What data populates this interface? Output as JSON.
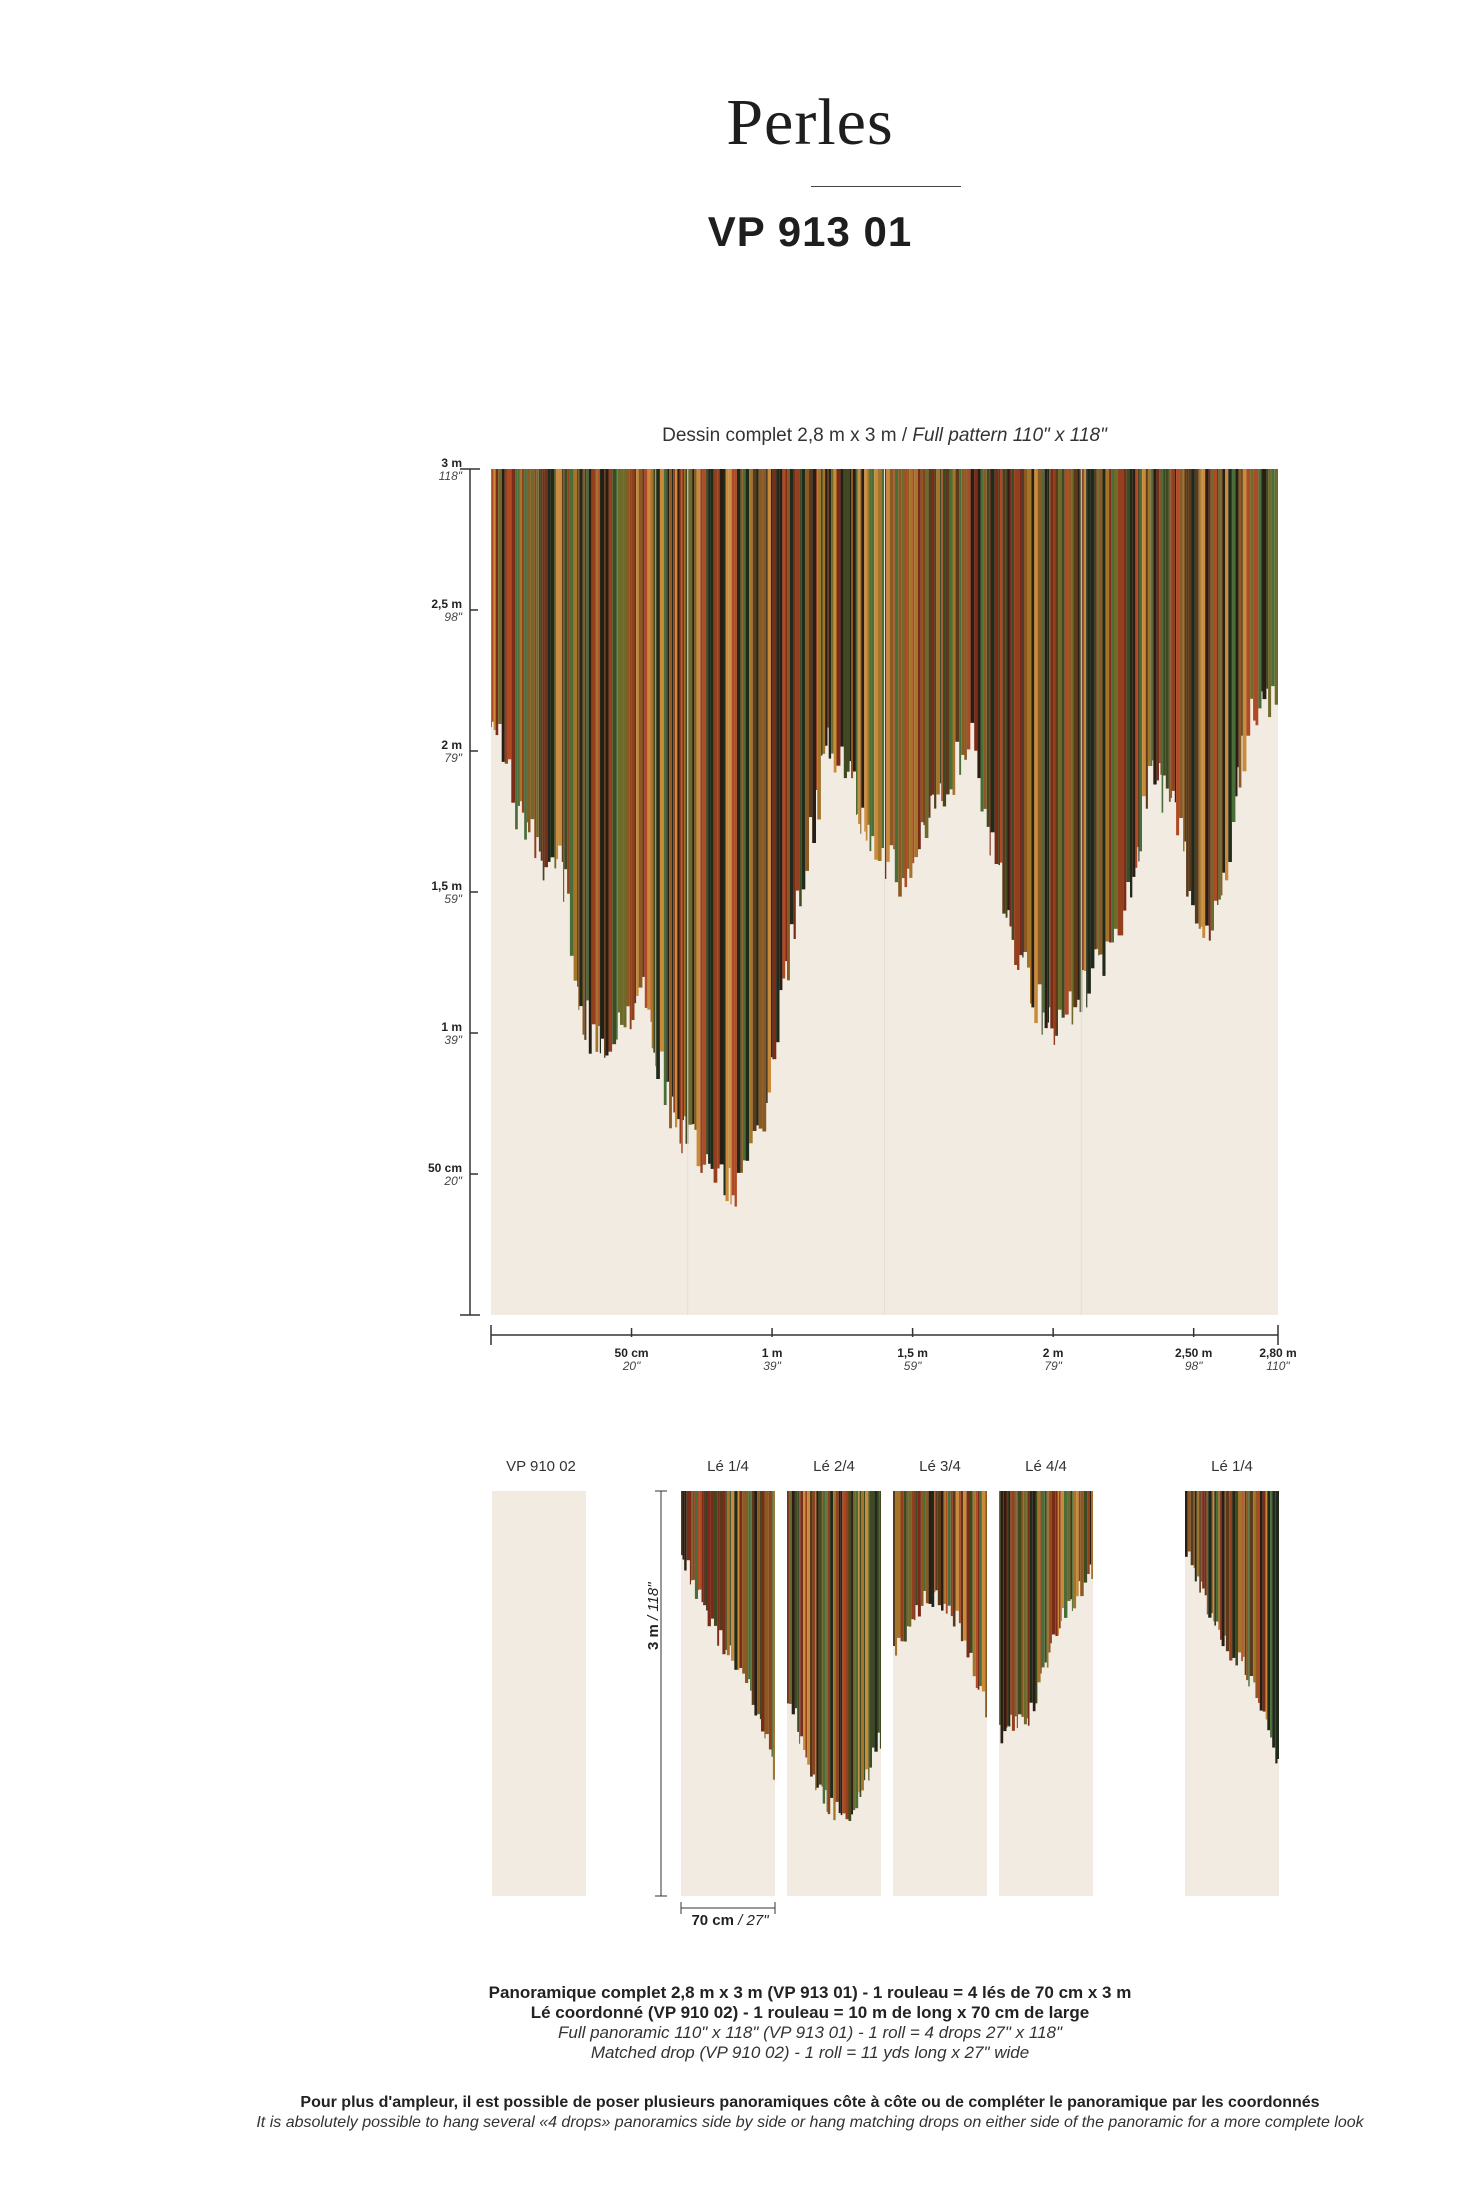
{
  "header": {
    "title": "Perles",
    "reference": "VP 913 01"
  },
  "pattern": {
    "caption_fr": "Dessin complet 2,8 m x 3 m / ",
    "caption_en": "Full pattern 110\" x 118\"",
    "vertical_ticks": [
      {
        "m": "3 m",
        "in": "118\""
      },
      {
        "m": "2,5 m",
        "in": "98\""
      },
      {
        "m": "2 m",
        "in": "79\""
      },
      {
        "m": "1,5 m",
        "in": "59\""
      },
      {
        "m": "1 m",
        "in": "39\""
      },
      {
        "m": "50 cm",
        "in": "20\""
      }
    ],
    "horizontal_ticks": [
      {
        "m": "50 cm",
        "in": "20\""
      },
      {
        "m": "1 m",
        "in": "39\""
      },
      {
        "m": "1,5 m",
        "in": "59\""
      },
      {
        "m": "2 m",
        "in": "79\""
      },
      {
        "m": "2,50 m",
        "in": "98\""
      },
      {
        "m": "2,80 m",
        "in": "110\""
      }
    ],
    "colors": {
      "background": "#f1ebe2",
      "stripes": [
        "#2a1e14",
        "#5b3a1c",
        "#8a5a22",
        "#a3742a",
        "#6d6a2a",
        "#3f4a22",
        "#b04a24",
        "#7a2c18",
        "#1f2a1a",
        "#c98a3a",
        "#4a6e3a",
        "#93401f"
      ]
    }
  },
  "drops": {
    "coordinated_label": "VP 910 02",
    "labels": [
      "Lé 1/4",
      "Lé 2/4",
      "Lé 3/4",
      "Lé 4/4",
      "Lé 1/4"
    ],
    "height_m": "3 m",
    "height_in": "/ 118\"",
    "width_m": "70 cm",
    "width_in": "/ 27\""
  },
  "footer": {
    "line1": "Panoramique complet 2,8 m x 3 m (VP 913 01) - 1 rouleau = 4 lés de 70 cm x 3 m",
    "line2": "Lé coordonné (VP 910 02) - 1 rouleau = 10 m de long x 70 cm de large",
    "line3": "Full panoramic 110\" x 118\" (VP 913 01) - 1 roll = 4 drops 27\" x 118\"",
    "line4": "Matched drop (VP 910 02) - 1 roll = 11 yds long x 27\" wide",
    "note_fr": "Pour plus d'ampleur, il est possible de poser plusieurs panoramiques côte à côte ou de compléter le panoramique par les coordonnés",
    "note_en": "It is absolutely possible to hang several «4 drops» panoramics side by side or hang matching drops on either side of the panoramic for a more complete look"
  }
}
